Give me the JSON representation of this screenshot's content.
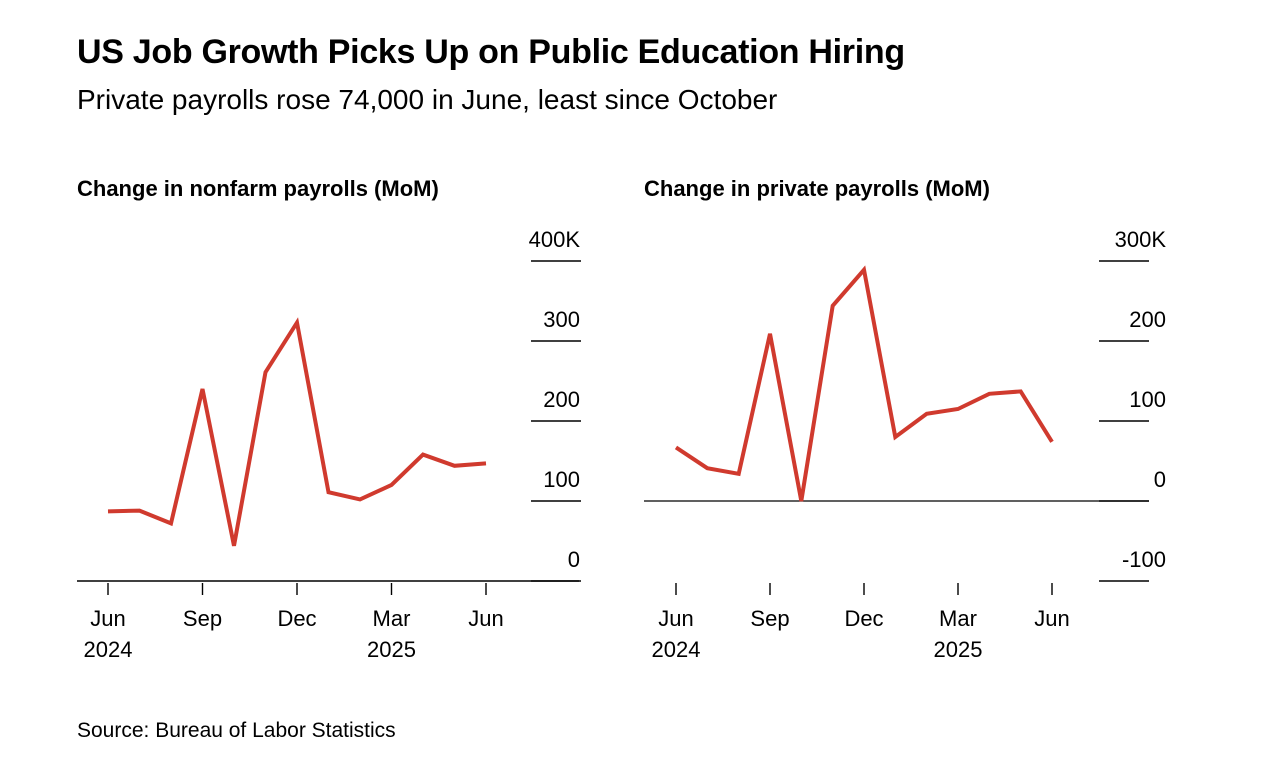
{
  "page": {
    "title": "US Job Growth Picks Up on Public Education Hiring",
    "subtitle": "Private payrolls rose 74,000 in June, least since October",
    "source": "Source: Bureau of Labor Statistics"
  },
  "chart_data": [
    {
      "type": "line",
      "title": "Change in nonfarm payrolls (MoM)",
      "xlabel": "",
      "ylabel": "",
      "x": [
        "2024-06",
        "2024-07",
        "2024-08",
        "2024-09",
        "2024-10",
        "2024-11",
        "2024-12",
        "2025-01",
        "2025-02",
        "2025-03",
        "2025-04",
        "2025-05",
        "2025-06"
      ],
      "series": [
        {
          "values": [
            87,
            88,
            72,
            240,
            44,
            261,
            323,
            111,
            102,
            120,
            158,
            144,
            147
          ],
          "color": "#d03a2e"
        }
      ],
      "ylim": [
        0,
        400
      ],
      "y_ticks": [
        0,
        100,
        200,
        300,
        400
      ],
      "y_tick_labels": [
        "0",
        "100",
        "200",
        "300",
        "400K"
      ],
      "x_ticks": [
        {
          "x": "2024-06",
          "month": "Jun",
          "year": "2024"
        },
        {
          "x": "2024-09",
          "month": "Sep",
          "year": ""
        },
        {
          "x": "2024-12",
          "month": "Dec",
          "year": ""
        },
        {
          "x": "2025-03",
          "month": "Mar",
          "year": "2025"
        },
        {
          "x": "2025-06",
          "month": "Jun",
          "year": ""
        }
      ],
      "grid": true,
      "y_axis_position": "right"
    },
    {
      "type": "line",
      "title": "Change in private payrolls (MoM)",
      "xlabel": "",
      "ylabel": "",
      "x": [
        "2024-06",
        "2024-07",
        "2024-08",
        "2024-09",
        "2024-10",
        "2024-11",
        "2024-12",
        "2025-01",
        "2025-02",
        "2025-03",
        "2025-04",
        "2025-05",
        "2025-06"
      ],
      "series": [
        {
          "values": [
            67,
            41,
            34,
            209,
            0,
            244,
            289,
            80,
            109,
            115,
            134,
            137,
            74
          ],
          "color": "#d03a2e"
        }
      ],
      "ylim": [
        -100,
        300
      ],
      "y_ticks": [
        -100,
        0,
        100,
        200,
        300
      ],
      "y_tick_labels": [
        "-100",
        "0",
        "100",
        "200",
        "300K"
      ],
      "x_ticks": [
        {
          "x": "2024-06",
          "month": "Jun",
          "year": "2024"
        },
        {
          "x": "2024-09",
          "month": "Sep",
          "year": ""
        },
        {
          "x": "2024-12",
          "month": "Dec",
          "year": ""
        },
        {
          "x": "2025-03",
          "month": "Mar",
          "year": "2025"
        },
        {
          "x": "2025-06",
          "month": "Jun",
          "year": ""
        }
      ],
      "grid": true,
      "zero_line": true,
      "y_axis_position": "right"
    }
  ]
}
